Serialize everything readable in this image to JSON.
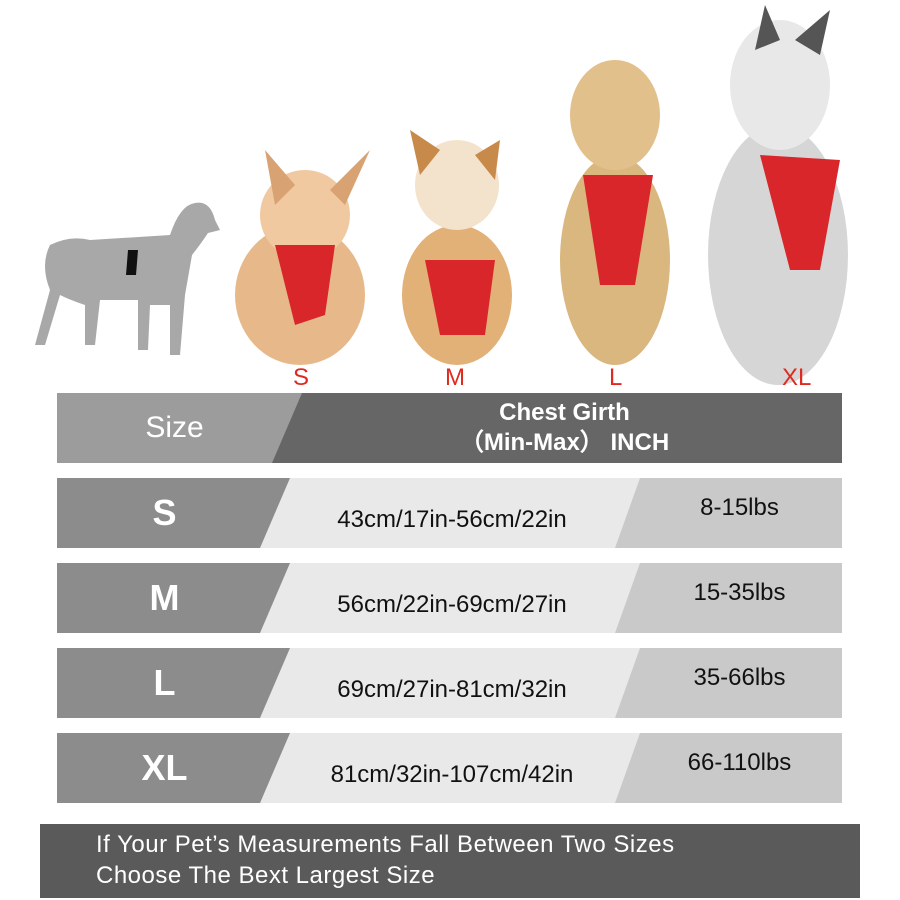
{
  "dogs": [
    {
      "label": "S",
      "harness_color": "#d9262a"
    },
    {
      "label": "M",
      "harness_color": "#d9262a"
    },
    {
      "label": "L",
      "harness_color": "#d9262a"
    },
    {
      "label": "XL",
      "harness_color": "#d9262a"
    }
  ],
  "header": {
    "size": "Size",
    "girth_line1": "Chest Girth",
    "girth_line2": "（Min-Max） INCH"
  },
  "rows": [
    {
      "size": "S",
      "girth": "43cm/17in-56cm/22in",
      "weight": "8-15lbs"
    },
    {
      "size": "M",
      "girth": "56cm/22in-69cm/27in",
      "weight": "15-35lbs"
    },
    {
      "size": "L",
      "girth": "69cm/27in-81cm/32in",
      "weight": "35-66lbs"
    },
    {
      "size": "XL",
      "girth": "81cm/32in-107cm/42in",
      "weight": "66-110lbs"
    }
  ],
  "note": {
    "line1": "If Your Pet’s Measurements Fall Between Two Sizes",
    "line2": "Choose The Bext Largest Size"
  },
  "colors": {
    "label_red": "#e02a1f",
    "dark_gray": "#666666",
    "mid_gray": "#8c8c8c"
  }
}
